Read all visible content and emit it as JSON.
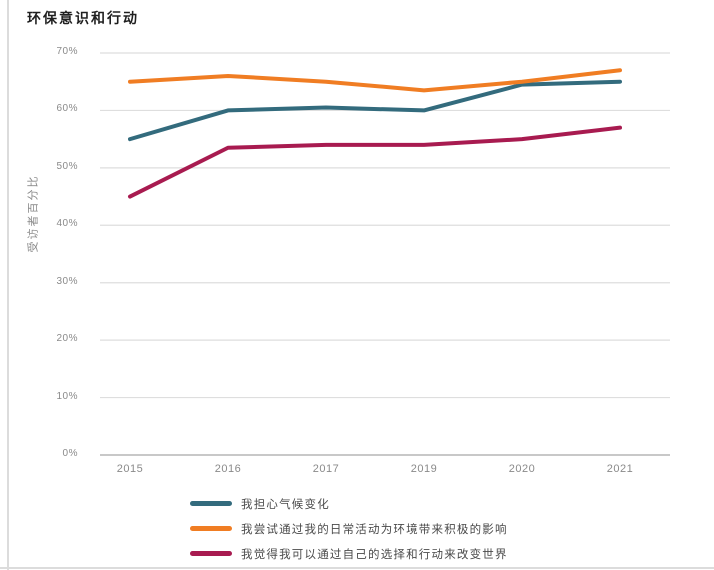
{
  "chart_data": {
    "type": "line",
    "title": "环保意识和行动",
    "ylabel": "受访者百分比",
    "xlabel": "",
    "categories": [
      "2015",
      "2016",
      "2017",
      "2019",
      "2020",
      "2021"
    ],
    "series": [
      {
        "name": "我担心气候变化",
        "color": "#336b7d",
        "values": [
          55,
          60,
          60.5,
          60,
          64.5,
          65
        ]
      },
      {
        "name": "我尝试通过我的日常活动为环境带来积极的影响",
        "color": "#f07d23",
        "values": [
          65,
          66,
          65,
          63.5,
          65,
          67
        ]
      },
      {
        "name": "我觉得我可以通过自己的选择和行动来改变世界",
        "color": "#a81b50",
        "values": [
          45,
          53.5,
          54,
          54,
          55,
          57
        ]
      }
    ],
    "ylim": [
      0,
      70
    ],
    "yticks": [
      "0%",
      "10%",
      "20%",
      "30%",
      "40%",
      "50%",
      "60%",
      "70%"
    ],
    "grid": "horizontal",
    "legend_position": "bottom"
  },
  "colors": {
    "grid": "#dedede",
    "axis": "#b5b5b5",
    "tick_text": "#8a8a8a",
    "title_text": "#1f1f1f",
    "legend_text": "#4a4a4a",
    "page_edge": "#dcdcdc"
  }
}
